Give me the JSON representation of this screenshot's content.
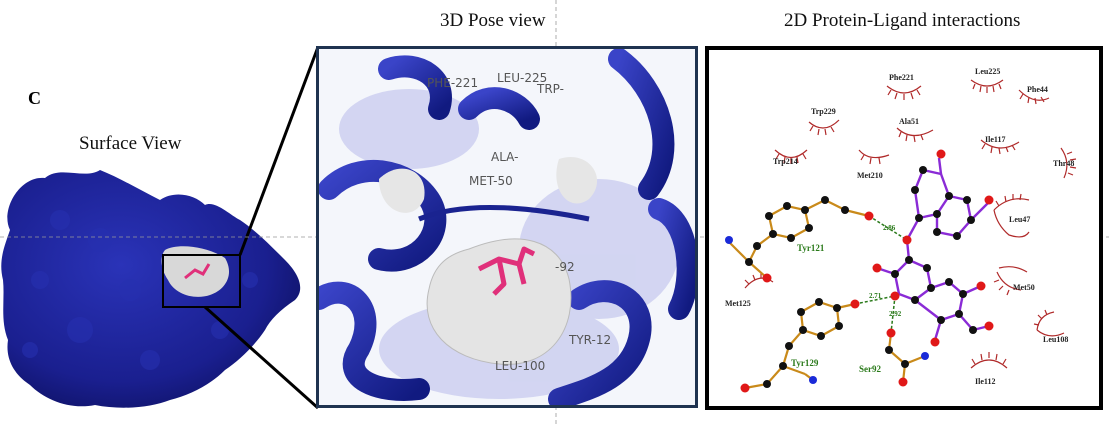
{
  "panel_letter": "C",
  "titles": {
    "pose": "3D Pose view",
    "interactions": "2D Protein-Ligand interactions",
    "surface": "Surface View"
  },
  "pose_labels": [
    "PHE-221",
    "LEU-225",
    "TRP-",
    "ALA-",
    "MET-50",
    "",
    "-92",
    "TYR-12",
    "LEU-100"
  ],
  "hydrophobic": [
    "Phe221",
    "Leu225",
    "Phe44",
    "Trp229",
    "Ala51",
    "Ile117",
    "Trp214",
    "Met210",
    "Thr48",
    "Leu47",
    "Met50",
    "Met125",
    "Leu108",
    "Ile112"
  ],
  "hbond_residues": [
    "Tyr121",
    "Tyr129",
    "Ser92"
  ],
  "distances": [
    "2.86",
    "2.71",
    "2.92"
  ],
  "colors": {
    "frame": "#1f3350",
    "protein": "#1a1f8f",
    "ligand": "#e0307a",
    "hbond": "#2a7a1a",
    "hydrophobic": "#b02a2a",
    "ligand_bond": "#8a2bd6",
    "residue_bond": "#c98a1a"
  }
}
